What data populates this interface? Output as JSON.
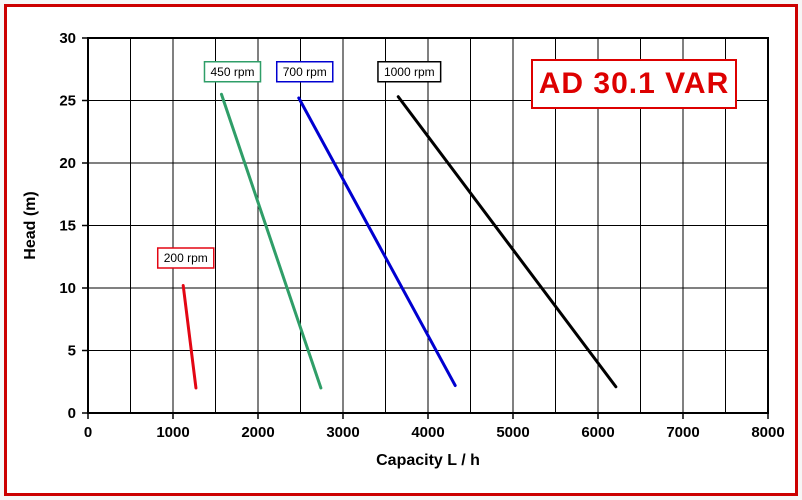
{
  "title": "AD 30.1 VAR",
  "title_color": "#dd0000",
  "chart_data": {
    "type": "line",
    "title": "AD 30.1 VAR",
    "xlabel": "Capacity  L / h",
    "ylabel": "Head (m)",
    "xlim": [
      0,
      8000
    ],
    "ylim": [
      0,
      30
    ],
    "x_major_ticks": [
      0,
      1000,
      2000,
      3000,
      4000,
      5000,
      6000,
      7000,
      8000
    ],
    "y_major_ticks": [
      0,
      5,
      10,
      15,
      20,
      25,
      30
    ],
    "x_grid_step": 500,
    "y_grid_step": 5,
    "grid": true,
    "legend_position": "inline-labels",
    "series": [
      {
        "name": "200 rpm",
        "color": "#e30613",
        "points": [
          [
            1120,
            10.2
          ],
          [
            1270,
            2.0
          ]
        ],
        "label_pos": [
          1150,
          12.4
        ]
      },
      {
        "name": "450 rpm",
        "color": "#2f9e68",
        "points": [
          [
            1570,
            25.5
          ],
          [
            2740,
            2.0
          ]
        ],
        "label_pos": [
          1700,
          27.3
        ]
      },
      {
        "name": "700 rpm",
        "color": "#0000d0",
        "points": [
          [
            2480,
            25.2
          ],
          [
            4320,
            2.2
          ]
        ],
        "label_pos": [
          2550,
          27.3
        ]
      },
      {
        "name": "1000 rpm",
        "color": "#000000",
        "points": [
          [
            3650,
            25.3
          ],
          [
            6210,
            2.1
          ]
        ],
        "label_pos": [
          3780,
          27.3
        ]
      }
    ]
  }
}
